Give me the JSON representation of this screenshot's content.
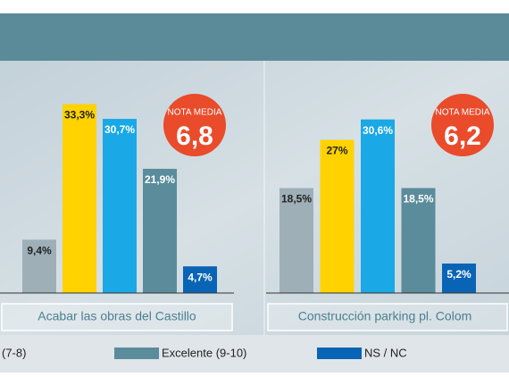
{
  "chart_data": [
    {
      "type": "bar",
      "title": "Acabar las obras del Castillo",
      "values": [
        9.4,
        33.3,
        30.7,
        21.9,
        4.7
      ],
      "value_labels": [
        "9,4%",
        "33,3%",
        "30,7%",
        "21,9%",
        "4,7%"
      ],
      "colors": [
        "#9eafb7",
        "#ffd200",
        "#1aa8e6",
        "#5a8c9b",
        "#0a64b5"
      ],
      "ylim": [
        0,
        40
      ],
      "average": {
        "label": "NOTA MEDIA",
        "value": 6.8,
        "value_label": "6,8"
      }
    },
    {
      "type": "bar",
      "title": "Construcción parking pl. Colom",
      "values": [
        18.5,
        27,
        30.6,
        18.5,
        5.2
      ],
      "value_labels": [
        "18,5%",
        "27%",
        "30,6%",
        "18,5%",
        "5,2%"
      ],
      "colors": [
        "#9eafb7",
        "#ffd200",
        "#1aa8e6",
        "#5a8c9b",
        "#0a64b5"
      ],
      "ylim": [
        0,
        40
      ],
      "average": {
        "label": "NOTA MEDIA",
        "value": 6.2,
        "value_label": "6,2"
      }
    }
  ],
  "legend": [
    {
      "name": "(7-8)",
      "color": "#1aa8e6"
    },
    {
      "name": "Excelente (9-10)",
      "color": "#5a8c9b"
    },
    {
      "name": "NS / NC",
      "color": "#0a64b5"
    }
  ]
}
